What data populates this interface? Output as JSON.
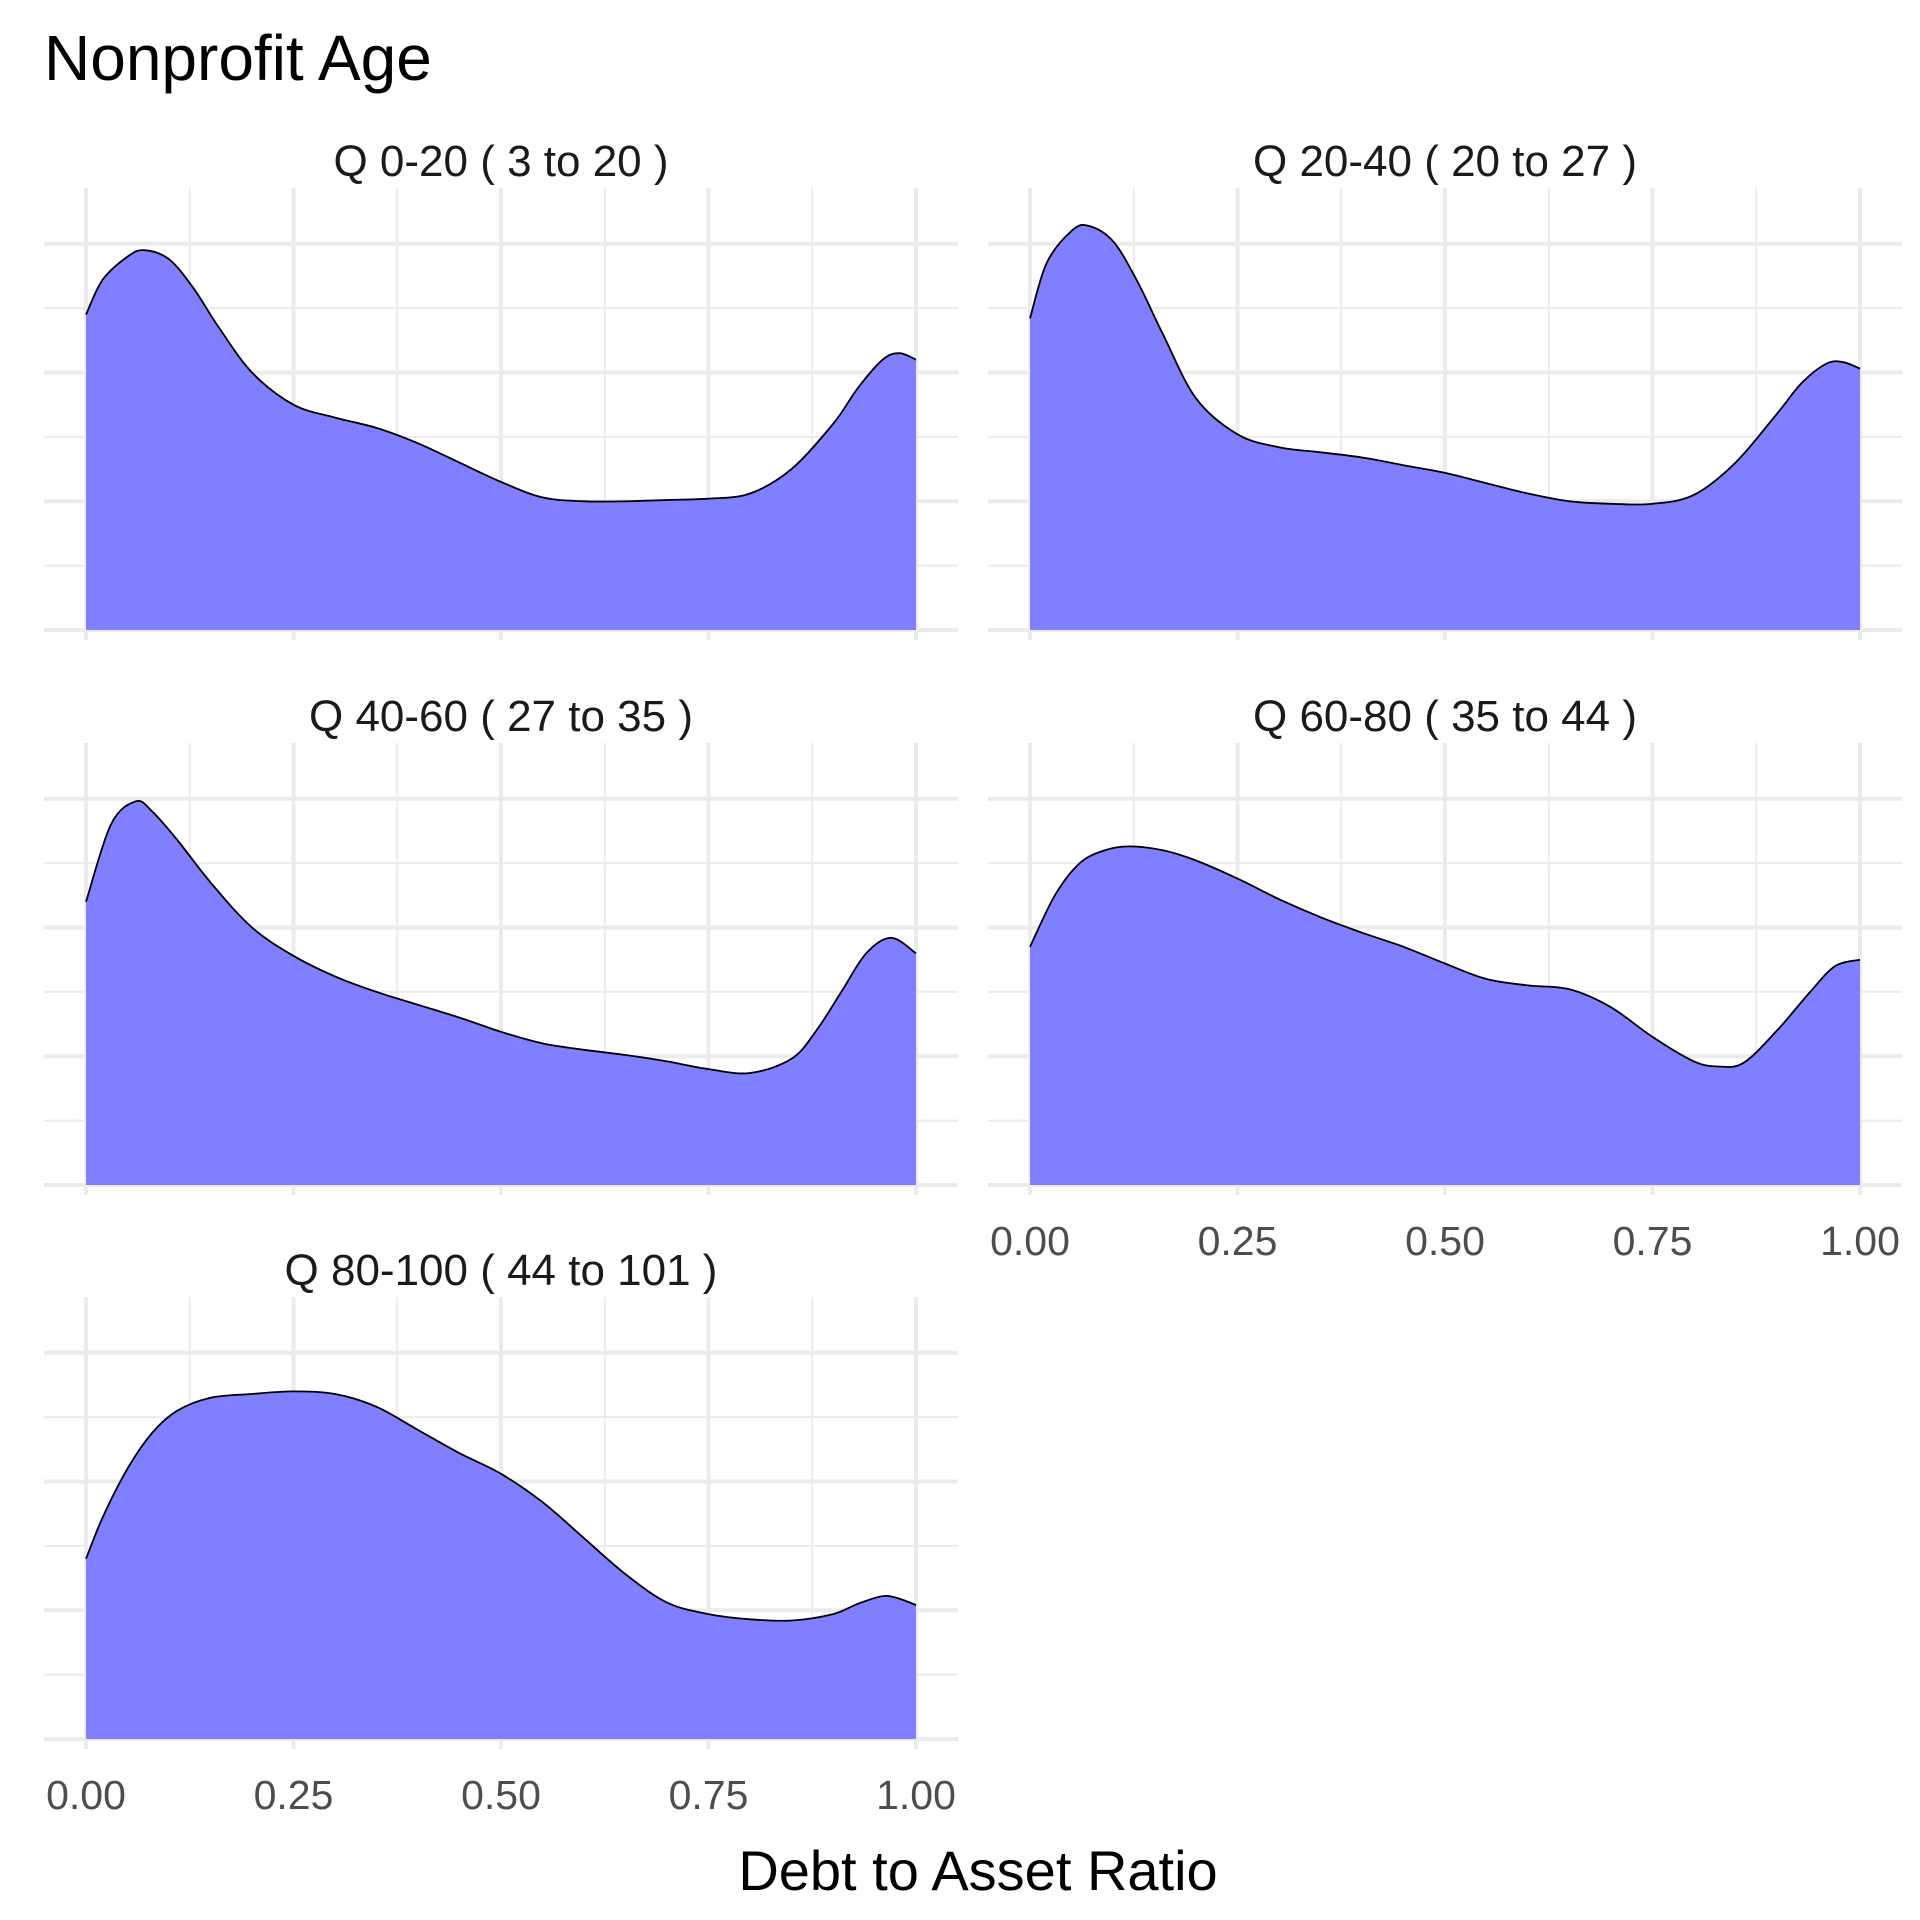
{
  "chart_data": {
    "type": "area",
    "title": "Nonprofit Age",
    "xlabel": "Debt to Asset Ratio",
    "ylabel": "",
    "xlim": [
      0,
      1
    ],
    "x_ticks": [
      "0.00",
      "0.25",
      "0.50",
      "0.75",
      "1.00"
    ],
    "x_tick_values": [
      0,
      0.25,
      0.5,
      0.75,
      1.0
    ],
    "y_ticks_labeled": false,
    "grid": true,
    "fill_color": "#7f7fff",
    "outline_color": "#000000",
    "panels": [
      {
        "label": "Q 0-20   ( 3 to 20 )",
        "x": [
          0.0,
          0.02,
          0.05,
          0.07,
          0.1,
          0.13,
          0.16,
          0.2,
          0.25,
          0.3,
          0.35,
          0.4,
          0.45,
          0.5,
          0.55,
          0.6,
          0.65,
          0.7,
          0.75,
          0.8,
          0.85,
          0.9,
          0.93,
          0.96,
          0.98,
          1.0
        ],
        "y": [
          2.45,
          2.72,
          2.9,
          2.95,
          2.88,
          2.65,
          2.35,
          2.0,
          1.75,
          1.65,
          1.57,
          1.45,
          1.3,
          1.15,
          1.03,
          1.0,
          1.0,
          1.01,
          1.02,
          1.06,
          1.25,
          1.6,
          1.88,
          2.1,
          2.15,
          2.1
        ]
      },
      {
        "label": "Q 20-40   ( 20 to 27 )",
        "x": [
          0.0,
          0.02,
          0.05,
          0.07,
          0.1,
          0.13,
          0.16,
          0.2,
          0.25,
          0.3,
          0.35,
          0.4,
          0.45,
          0.5,
          0.55,
          0.6,
          0.65,
          0.7,
          0.75,
          0.8,
          0.85,
          0.9,
          0.93,
          0.96,
          0.98,
          1.0
        ],
        "y": [
          2.42,
          2.85,
          3.1,
          3.14,
          3.02,
          2.7,
          2.3,
          1.8,
          1.52,
          1.42,
          1.38,
          1.34,
          1.28,
          1.22,
          1.14,
          1.06,
          1.0,
          0.98,
          0.98,
          1.05,
          1.3,
          1.68,
          1.92,
          2.07,
          2.08,
          2.03
        ]
      },
      {
        "label": "Q 40-60   ( 27 to 35 )",
        "x": [
          0.0,
          0.03,
          0.06,
          0.08,
          0.11,
          0.15,
          0.2,
          0.25,
          0.3,
          0.35,
          0.4,
          0.45,
          0.5,
          0.55,
          0.6,
          0.65,
          0.7,
          0.75,
          0.8,
          0.85,
          0.88,
          0.91,
          0.94,
          0.97,
          1.0
        ],
        "y": [
          2.2,
          2.8,
          2.98,
          2.9,
          2.68,
          2.35,
          2.0,
          1.78,
          1.62,
          1.5,
          1.4,
          1.3,
          1.19,
          1.1,
          1.05,
          1.01,
          0.96,
          0.9,
          0.87,
          0.98,
          1.2,
          1.5,
          1.8,
          1.92,
          1.8
        ]
      },
      {
        "label": "Q 60-80   ( 35 to 44 )",
        "x": [
          0.0,
          0.03,
          0.06,
          0.09,
          0.12,
          0.16,
          0.2,
          0.25,
          0.3,
          0.35,
          0.4,
          0.45,
          0.5,
          0.55,
          0.6,
          0.65,
          0.7,
          0.75,
          0.8,
          0.83,
          0.86,
          0.9,
          0.94,
          0.97,
          1.0
        ],
        "y": [
          1.85,
          2.25,
          2.5,
          2.6,
          2.63,
          2.6,
          2.52,
          2.38,
          2.22,
          2.08,
          1.96,
          1.85,
          1.72,
          1.6,
          1.55,
          1.52,
          1.38,
          1.15,
          0.96,
          0.92,
          0.95,
          1.2,
          1.5,
          1.7,
          1.75
        ]
      },
      {
        "label": "Q 80-100   ( 44 to 101 )",
        "x": [
          0.0,
          0.02,
          0.05,
          0.08,
          0.11,
          0.15,
          0.2,
          0.25,
          0.3,
          0.35,
          0.4,
          0.45,
          0.5,
          0.55,
          0.6,
          0.65,
          0.7,
          0.75,
          0.8,
          0.85,
          0.9,
          0.93,
          0.96,
          0.98,
          1.0
        ],
        "y": [
          1.4,
          1.72,
          2.1,
          2.38,
          2.55,
          2.65,
          2.68,
          2.7,
          2.68,
          2.58,
          2.4,
          2.22,
          2.06,
          1.84,
          1.56,
          1.28,
          1.06,
          0.97,
          0.93,
          0.92,
          0.97,
          1.05,
          1.11,
          1.09,
          1.04
        ]
      }
    ],
    "ylim": [
      0,
      3.2
    ]
  }
}
